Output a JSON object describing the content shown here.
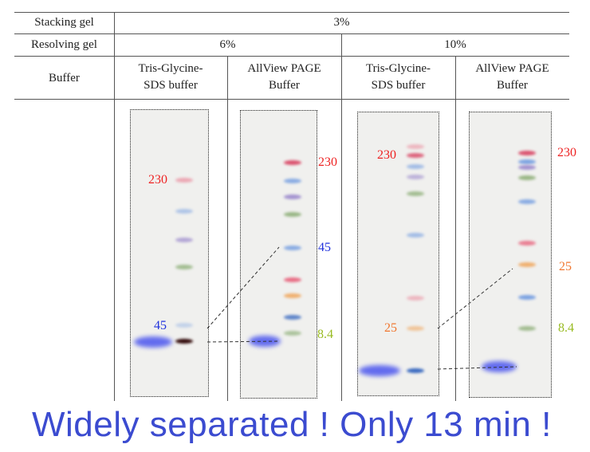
{
  "table": {
    "row_labels": [
      "Stacking gel",
      "Resolving gel",
      "Buffer"
    ],
    "stacking": "3%",
    "resolving": [
      "6%",
      "10%"
    ],
    "buffers": [
      "Tris-Glycine-\nSDS buffer",
      "AllView PAGE\nBuffer",
      "Tris-Glycine-\nSDS buffer",
      "AllView PAGE\nBuffer"
    ]
  },
  "gels": [
    {
      "labels": [
        {
          "text": "230",
          "color": "#ee2222"
        },
        {
          "text": "45",
          "color": "#2233dd"
        }
      ]
    },
    {
      "labels": [
        {
          "text": "230",
          "color": "#ee2222"
        },
        {
          "text": "45",
          "color": "#2233dd"
        },
        {
          "text": "8.4",
          "color": "#99bb22"
        }
      ]
    },
    {
      "labels": [
        {
          "text": "230",
          "color": "#ee2222"
        },
        {
          "text": "25",
          "color": "#f07730"
        }
      ]
    },
    {
      "labels": [
        {
          "text": "230",
          "color": "#ee2222"
        },
        {
          "text": "25",
          "color": "#f07730"
        },
        {
          "text": "8.4",
          "color": "#99bb22"
        }
      ]
    }
  ],
  "tagline": "Widely separated ! Only 13 min !"
}
